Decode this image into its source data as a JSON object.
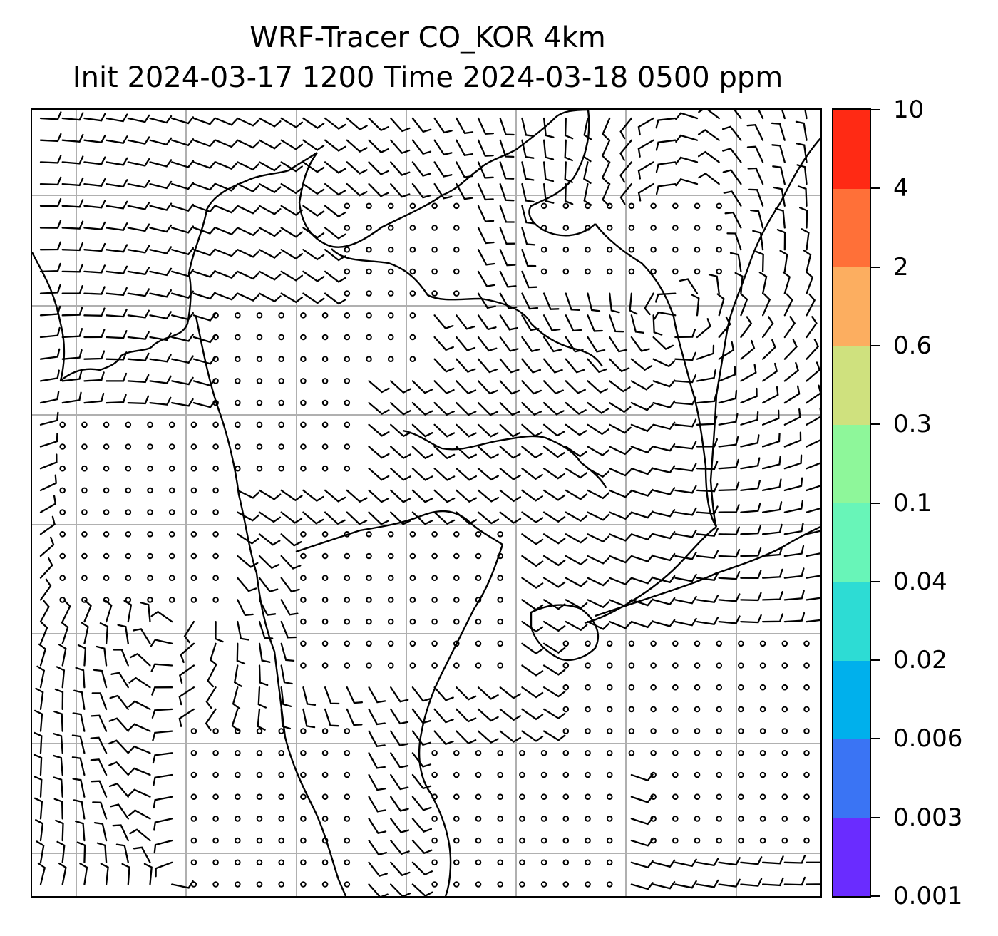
{
  "header": {
    "title_line1": "WRF-Tracer CO_KOR 4km",
    "title_line2": "Init 2024-03-17 1200 Time 2024-03-18 0500 ppm"
  },
  "map": {
    "coastline_color": "#000000",
    "gridline_color": "#b0b0b0",
    "barb_color": "#000000",
    "gridlines": "on",
    "field": "CO tracer concentration (ppm) with wind barbs"
  },
  "colorbar": {
    "tick_labels": [
      "0.001",
      "0.003",
      "0.006",
      "0.02",
      "0.04",
      "0.1",
      "0.3",
      "0.6",
      "2",
      "4",
      "10"
    ],
    "colors": [
      "#6a2cff",
      "#3a74f4",
      "#00b0ec",
      "#2ddcd4",
      "#68f5b8",
      "#8ef79a",
      "#cfe17e",
      "#fcae60",
      "#ff7038",
      "#ff2a14"
    ]
  }
}
